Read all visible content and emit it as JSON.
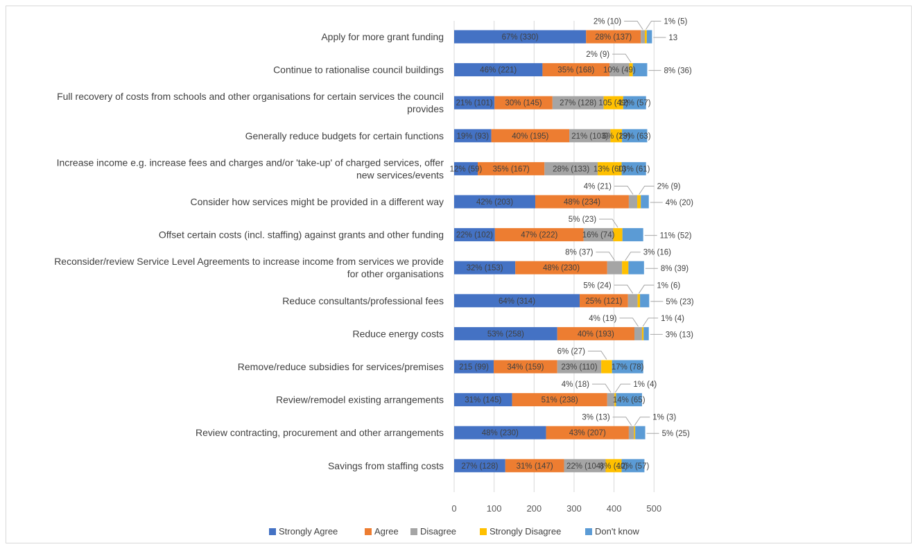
{
  "chart_data": {
    "type": "bar",
    "orientation": "horizontal",
    "stacked": true,
    "title": "",
    "xlabel": "",
    "ylabel": "",
    "xlim": [
      0,
      500
    ],
    "xticks": [
      "0",
      "100",
      "200",
      "300",
      "400",
      "500"
    ],
    "grid": "vertical",
    "legend_position": "bottom",
    "categories": [
      [
        "Apply for more grant funding"
      ],
      [
        "Continue to rationalise council buildings"
      ],
      [
        "Full recovery of costs from schools and other organisations for certain services the council",
        "provides"
      ],
      [
        "Generally reduce budgets for certain functions"
      ],
      [
        "Increase income e.g. increase fees and charges and/or 'take-up' of charged services, offer",
        "new services/events"
      ],
      [
        "Consider how services might be provided in a different way"
      ],
      [
        "Offset certain costs (incl. staffing) against grants and other funding"
      ],
      [
        "Reconsider/review Service Level Agreements to increase income from services we provide",
        "for other organisations"
      ],
      [
        "Reduce consultants/professional fees"
      ],
      [
        "Reduce energy costs"
      ],
      [
        "Remove/reduce subsidies for services/premises"
      ],
      [
        "Review/remodel existing arrangements"
      ],
      [
        "Review contracting, procurement and other arrangements"
      ],
      [
        "Savings from staffing costs"
      ]
    ],
    "series": [
      {
        "name": "Strongly Agree",
        "color": "#4472c4",
        "values": [
          330,
          221,
          101,
          93,
          59,
          203,
          102,
          153,
          314,
          258,
          99,
          145,
          230,
          128
        ],
        "labels": [
          "67% (330)",
          "46% (221)",
          "21% (101)",
          "19% (93)",
          "12% (59)",
          "42% (203)",
          "22% (102)",
          "32% (153)",
          "64% (314)",
          "53% (258)",
          "215 (99)",
          "31% (145)",
          "48% (230)",
          "27% (128)"
        ]
      },
      {
        "name": "Agree",
        "color": "#ed7d31",
        "values": [
          137,
          168,
          145,
          195,
          167,
          234,
          222,
          230,
          121,
          193,
          159,
          238,
          207,
          147
        ],
        "labels": [
          "28% (137)",
          "35% (168)",
          "30% (145)",
          "40% (195)",
          "35% (167)",
          "48% (234)",
          "47% (222)",
          "48% (230)",
          "25% (121)",
          "40% (193)",
          "34% (159)",
          "51% (238)",
          "43% (207)",
          "31% (147)"
        ]
      },
      {
        "name": "Disagree",
        "color": "#a5a5a5",
        "values": [
          10,
          49,
          128,
          103,
          133,
          21,
          74,
          37,
          24,
          19,
          110,
          18,
          13,
          104
        ],
        "labels": [
          "2% (10)",
          "10% (49)",
          "27% (128)",
          "21% (103)",
          "28% (133)",
          "4% (21)",
          "16% (74)",
          "8% (37)",
          "5% (24)",
          "4% (19)",
          "23% (110)",
          "4% (18)",
          "3% (13)",
          "22% (104)"
        ]
      },
      {
        "name": "Strongly Disagree",
        "color": "#ffc000",
        "values": [
          5,
          9,
          49,
          29,
          60,
          9,
          23,
          16,
          6,
          4,
          27,
          4,
          3,
          40
        ],
        "labels": [
          "1% (5)",
          "2% (9)",
          "105 (49)",
          "6% (29)",
          "13% (60)",
          "2% (9)",
          "5% (23)",
          "3% (16)",
          "1% (6)",
          "1% (4)",
          "6% (27)",
          "1% (4)",
          "1% (3)",
          "8% (40)"
        ]
      },
      {
        "name": "Don't know",
        "color": "#5b9bd5",
        "values": [
          13,
          36,
          57,
          63,
          61,
          20,
          52,
          39,
          23,
          13,
          78,
          65,
          25,
          57
        ],
        "labels": [
          "13",
          "8% (36)",
          "12% (57)",
          "13% (63)",
          "13% (61)",
          "4% (20)",
          "11% (52)",
          "8% (39)",
          "5% (23)",
          "3% (13)",
          "17% (78)",
          "14% (65)",
          "5% (25)",
          "12% (57)"
        ]
      }
    ],
    "label_placement": [
      [
        "inside",
        "inside",
        "above",
        "above",
        "right"
      ],
      [
        "inside",
        "inside",
        "inside",
        "above",
        "right"
      ],
      [
        "inside",
        "inside",
        "inside",
        "inside",
        "inside"
      ],
      [
        "inside",
        "inside",
        "inside",
        "inside",
        "inside"
      ],
      [
        "inside",
        "inside",
        "inside",
        "inside",
        "inside"
      ],
      [
        "inside",
        "inside",
        "above",
        "above",
        "right"
      ],
      [
        "inside",
        "inside",
        "inside",
        "above",
        "right"
      ],
      [
        "inside",
        "inside",
        "above",
        "above",
        "right"
      ],
      [
        "inside",
        "inside",
        "above",
        "above",
        "right"
      ],
      [
        "inside",
        "inside",
        "above",
        "above",
        "right"
      ],
      [
        "inside",
        "inside",
        "inside",
        "above",
        "inside"
      ],
      [
        "inside",
        "inside",
        "above",
        "above",
        "inside"
      ],
      [
        "inside",
        "inside",
        "above",
        "above",
        "right"
      ],
      [
        "inside",
        "inside",
        "inside",
        "inside",
        "inside"
      ]
    ]
  }
}
